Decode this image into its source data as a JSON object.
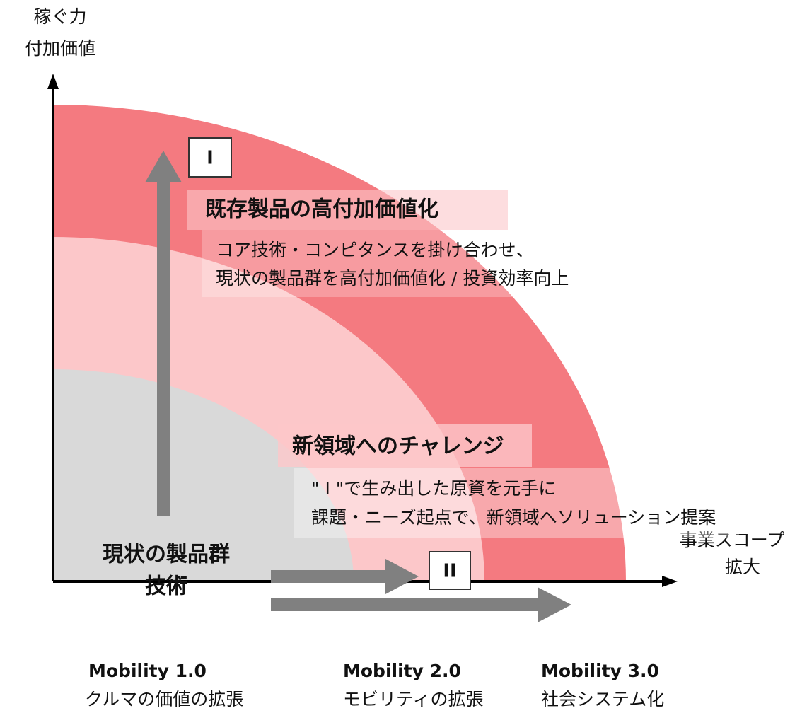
{
  "y_axis": {
    "label_lines": [
      "稼ぐ力",
      "付加価値"
    ]
  },
  "x_axis": {
    "label_lines": [
      "事業スコープ",
      "拡大"
    ]
  },
  "zones": [
    {
      "marker": "I",
      "heading": "既存製品の高付加価値化",
      "description_lines": [
        "コア技術・コンピタンスを掛け合わせ、",
        "現状の製品群を高付加価値化 / 投資効率向上"
      ]
    },
    {
      "marker": "II",
      "heading": "新領域へのチャレンジ",
      "description_lines": [
        "\" Ⅰ \"で生み出した原資を元手に",
        "課題・ニーズ起点で、新領域へソリューション提案"
      ]
    }
  ],
  "core": {
    "label_lines": [
      "現状の製品群",
      "技術"
    ]
  },
  "stages": [
    {
      "name": "Mobility 1.0",
      "description": "クルマの価値の拡張"
    },
    {
      "name": "Mobility 2.0",
      "description": "モビリティの拡張"
    },
    {
      "name": "Mobility 3.0",
      "description": "社会システム化"
    }
  ]
}
